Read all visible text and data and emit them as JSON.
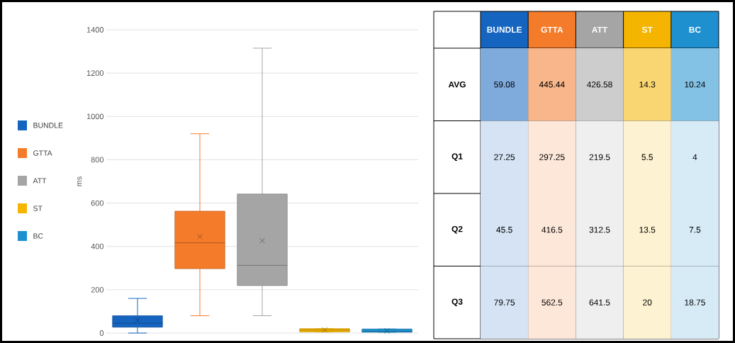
{
  "chart_data": [
    {
      "type": "box",
      "ylabel": "ms",
      "categories": [
        null,
        null,
        null,
        null,
        null
      ],
      "series": [
        {
          "name": "BUNDLE",
          "color": "#1565c0",
          "boxes": [
            {
              "low": 0,
              "q1": 27.25,
              "median": 45.5,
              "q3": 79.75,
              "high": 160,
              "mean": 59.08
            },
            null,
            null,
            null,
            null
          ]
        },
        {
          "name": "GTTA",
          "color": "#f47b2a",
          "boxes": [
            null,
            {
              "low": 80,
              "q1": 297.25,
              "median": 416.5,
              "q3": 562.5,
              "high": 920,
              "mean": 445.44
            },
            null,
            null,
            null
          ]
        },
        {
          "name": "ATT",
          "color": "#a5a5a5",
          "boxes": [
            null,
            null,
            {
              "low": 80,
              "q1": 219.5,
              "median": 312.5,
              "q3": 641.5,
              "high": 1315,
              "mean": 426.58
            },
            null,
            null
          ]
        },
        {
          "name": "ST",
          "color": "#f5b400",
          "boxes": [
            null,
            null,
            null,
            {
              "low": 5.5,
              "q1": 5.5,
              "median": 13.5,
              "q3": 20,
              "high": 20,
              "mean": 14.3
            },
            null
          ]
        },
        {
          "name": "BC",
          "color": "#1e90d0",
          "boxes": [
            null,
            null,
            null,
            null,
            {
              "low": 4,
              "q1": 4,
              "median": 7.5,
              "q3": 18.75,
              "high": 18.75,
              "mean": 10.24
            }
          ]
        }
      ],
      "ylim": [
        0,
        1400
      ],
      "yticks": [
        0,
        200,
        400,
        600,
        800,
        1000,
        1200,
        1400
      ],
      "grid": "y",
      "legend": "left",
      "marker": "cross"
    },
    {
      "type": "heatmap",
      "categories": [
        "BUNDLE",
        "GTTA",
        "ATT",
        "ST",
        "BC"
      ],
      "y_categories": [
        "AVG",
        "Q1",
        "Q2",
        "Q3"
      ],
      "colors": [
        "#1565c0",
        "#f47b2a",
        "#a5a5a5",
        "#f5b400",
        "#1e90d0"
      ],
      "cells": [
        [
          59.08,
          445.44,
          426.58,
          14.3,
          10.24
        ],
        [
          27.25,
          297.25,
          219.5,
          5.5,
          4
        ],
        [
          45.5,
          416.5,
          312.5,
          13.5,
          7.5
        ],
        [
          79.75,
          562.5,
          641.5,
          20,
          18.75
        ]
      ],
      "data_labels": true
    }
  ]
}
